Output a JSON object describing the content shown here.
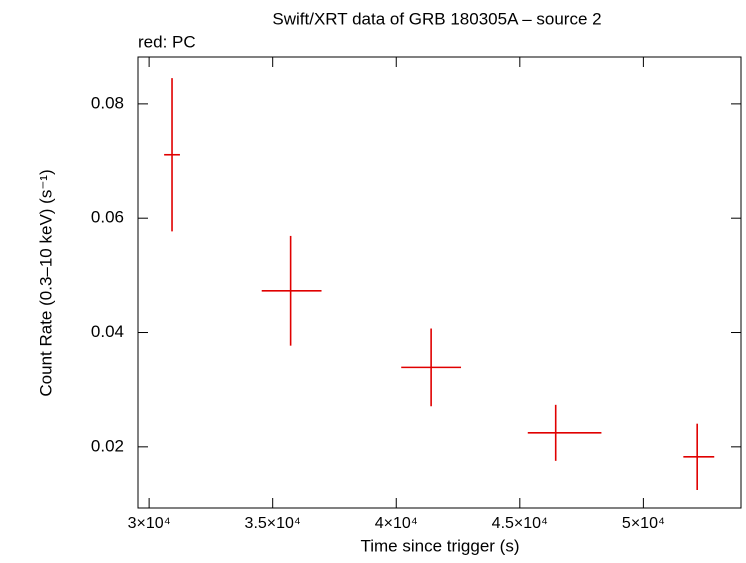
{
  "chart_data": {
    "type": "errorbar",
    "title": "Swift/XRT data of GRB 180305A – source 2",
    "subtitle": "red: PC",
    "x_label": "Time since trigger (s)",
    "y_label": "Count Rate (0.3–10 keV) (s⁻¹)",
    "series": [
      {
        "name": "PC",
        "color": "#e00000",
        "x": [
          30927,
          35726,
          41411,
          46452,
          52177
        ],
        "x_err_low": [
          320,
          1170,
          1210,
          1130,
          560
        ],
        "x_err_high": [
          320,
          1250,
          1210,
          1850,
          690
        ],
        "values": [
          0.0711,
          0.0473,
          0.0339,
          0.02245,
          0.01825
        ],
        "y_err": [
          0.0134,
          0.0096,
          0.0068,
          0.0049,
          0.0058
        ]
      }
    ],
    "xlim": [
      29550,
      53950
    ],
    "xticks": [
      {
        "value": 30000,
        "label": "3×10⁴"
      },
      {
        "value": 35000,
        "label": "3.5×10⁴"
      },
      {
        "value": 40000,
        "label": "4×10⁴"
      },
      {
        "value": 45000,
        "label": "4.5×10⁴"
      },
      {
        "value": 50000,
        "label": "5×10⁴"
      }
    ],
    "ylim": [
      0.0093,
      0.0882
    ],
    "yticks": [
      0.02,
      0.04,
      0.06,
      0.08
    ]
  }
}
